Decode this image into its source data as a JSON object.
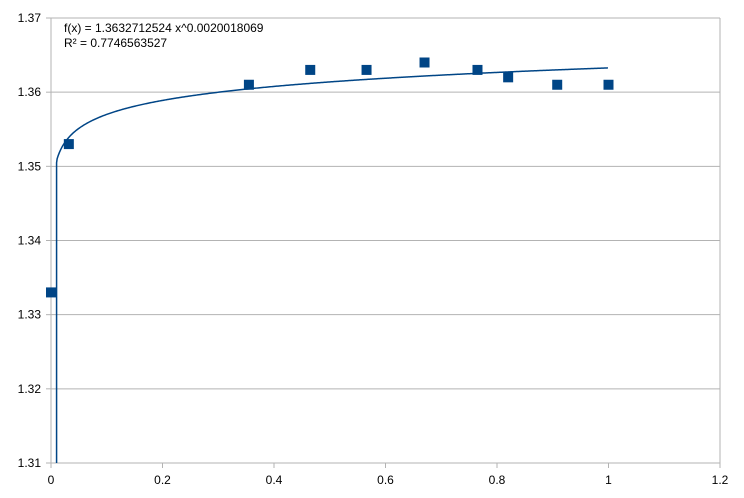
{
  "chart_data": {
    "type": "scatter",
    "title": "",
    "xlabel": "",
    "ylabel": "",
    "xlim": [
      0,
      1.2
    ],
    "ylim": [
      1.31,
      1.37
    ],
    "x_ticks": [
      "0",
      "0.2",
      "0.4",
      "0.6",
      "0.8",
      "1",
      "1.2"
    ],
    "y_ticks": [
      "1.31",
      "1.32",
      "1.33",
      "1.34",
      "1.35",
      "1.36",
      "1.37"
    ],
    "grid": "horizontal",
    "legend": "none",
    "points": [
      {
        "x": 0.0,
        "y": 1.333
      },
      {
        "x": 0.032,
        "y": 1.353
      },
      {
        "x": 0.355,
        "y": 1.361
      },
      {
        "x": 0.465,
        "y": 1.363
      },
      {
        "x": 0.566,
        "y": 1.363
      },
      {
        "x": 0.67,
        "y": 1.364
      },
      {
        "x": 0.765,
        "y": 1.363
      },
      {
        "x": 0.82,
        "y": 1.362
      },
      {
        "x": 0.908,
        "y": 1.361
      },
      {
        "x": 1.0,
        "y": 1.361
      }
    ],
    "trendline": {
      "type": "power",
      "a": 1.3632712524,
      "b": 0.0020018069,
      "x_range": [
        0.01,
        1.0
      ],
      "equation": "f(x) = 1.3632712524 x^0.0020018069",
      "r_squared": "R² = 0.7746563527"
    },
    "colors": {
      "marker": "#004586",
      "trendline": "#004586",
      "grid": "#b3b3b3",
      "axis": "#b3b3b3"
    }
  }
}
